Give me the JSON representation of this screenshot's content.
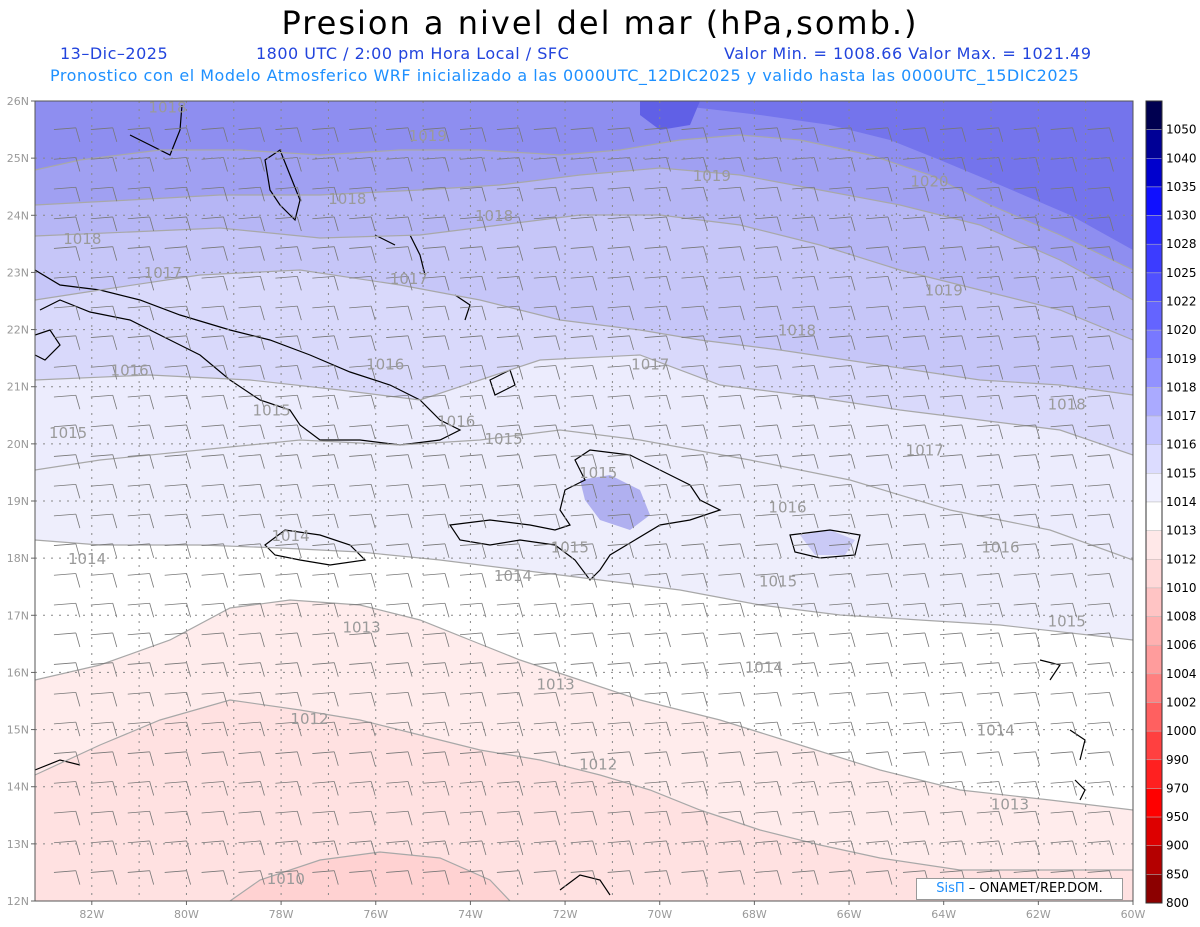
{
  "header": {
    "title": "Presion a nivel del mar (hPa,somb.)",
    "date": "13–Dic–2025",
    "time": "1800 UTC / 2:00 pm Hora Local / SFC",
    "minmax": "Valor Min. = 1008.66  Valor Max. = 1021.49",
    "model_info": "Pronostico con el Modelo Atmosferico WRF inicializado a las 0000UTC_12DIC2025 y valido hasta las  0000UTC_15DIC2025"
  },
  "map": {
    "lon_range": [
      -83.2,
      -60
    ],
    "lat_range": [
      12,
      26
    ],
    "lat_ticks": [
      "26N",
      "25N",
      "24N",
      "23N",
      "22N",
      "21N",
      "20N",
      "19N",
      "18N",
      "17N",
      "16N",
      "15N",
      "14N",
      "13N",
      "12N"
    ],
    "lon_ticks": [
      "82W",
      "80W",
      "78W",
      "76W",
      "74W",
      "72W",
      "70W",
      "68W",
      "66W",
      "64W",
      "62W",
      "60W"
    ],
    "contour_labels": [
      {
        "text": "1018",
        "lon": -80.4,
        "lat": 25.8
      },
      {
        "text": "1019",
        "lon": -74.9,
        "lat": 25.3
      },
      {
        "text": "1019",
        "lon": -68.9,
        "lat": 24.6
      },
      {
        "text": "1020",
        "lon": -64.3,
        "lat": 24.5
      },
      {
        "text": "1018",
        "lon": -76.6,
        "lat": 24.2
      },
      {
        "text": "1018",
        "lon": -73.5,
        "lat": 23.9
      },
      {
        "text": "1018",
        "lon": -82.2,
        "lat": 23.5
      },
      {
        "text": "1017",
        "lon": -80.5,
        "lat": 22.9
      },
      {
        "text": "1017",
        "lon": -75.3,
        "lat": 22.8
      },
      {
        "text": "1019",
        "lon": -64.0,
        "lat": 22.6
      },
      {
        "text": "1018",
        "lon": -67.1,
        "lat": 21.9
      },
      {
        "text": "1017",
        "lon": -70.2,
        "lat": 21.3
      },
      {
        "text": "1016",
        "lon": -81.2,
        "lat": 21.2
      },
      {
        "text": "1016",
        "lon": -75.8,
        "lat": 21.3
      },
      {
        "text": "1015",
        "lon": -78.2,
        "lat": 20.5
      },
      {
        "text": "1016",
        "lon": -74.3,
        "lat": 20.3
      },
      {
        "text": "1018",
        "lon": -61.4,
        "lat": 20.6
      },
      {
        "text": "1015",
        "lon": -82.5,
        "lat": 20.1
      },
      {
        "text": "1015",
        "lon": -73.3,
        "lat": 20.0
      },
      {
        "text": "1017",
        "lon": -64.4,
        "lat": 19.8
      },
      {
        "text": "1015",
        "lon": -71.3,
        "lat": 19.4
      },
      {
        "text": "1016",
        "lon": -67.3,
        "lat": 18.8
      },
      {
        "text": "1014",
        "lon": -77.8,
        "lat": 18.3
      },
      {
        "text": "1015",
        "lon": -71.9,
        "lat": 18.1
      },
      {
        "text": "1016",
        "lon": -62.8,
        "lat": 18.1
      },
      {
        "text": "1014",
        "lon": -82.1,
        "lat": 17.9
      },
      {
        "text": "1014",
        "lon": -73.1,
        "lat": 17.6
      },
      {
        "text": "1015",
        "lon": -67.5,
        "lat": 17.5
      },
      {
        "text": "1015",
        "lon": -61.4,
        "lat": 16.8
      },
      {
        "text": "1013",
        "lon": -76.3,
        "lat": 16.7
      },
      {
        "text": "1014",
        "lon": -67.8,
        "lat": 16.0
      },
      {
        "text": "1013",
        "lon": -72.2,
        "lat": 15.7
      },
      {
        "text": "1012",
        "lon": -77.4,
        "lat": 15.1
      },
      {
        "text": "1014",
        "lon": -62.9,
        "lat": 14.9
      },
      {
        "text": "1012",
        "lon": -71.3,
        "lat": 14.3
      },
      {
        "text": "1013",
        "lon": -62.6,
        "lat": 13.6
      },
      {
        "text": "1010",
        "lon": -77.9,
        "lat": 12.3
      }
    ]
  },
  "legend": {
    "labels": [
      "1050",
      "1040",
      "1035",
      "1030",
      "1028",
      "1025",
      "1022",
      "1020",
      "1019",
      "1018",
      "1017",
      "1016",
      "1015",
      "1014",
      "1013",
      "1012",
      "1010",
      "1008",
      "1006",
      "1004",
      "1002",
      "1000",
      "990",
      "970",
      "950",
      "900",
      "850",
      "800"
    ],
    "colors": [
      "#000050",
      "#000096",
      "#0000cd",
      "#1010ff",
      "#2a2aff",
      "#3c3cff",
      "#5050ff",
      "#6464ff",
      "#7878ff",
      "#9292ff",
      "#aaaaff",
      "#c4c4ff",
      "#dcdcff",
      "#f0f0ff",
      "#ffffff",
      "#ffe8e8",
      "#ffd8d8",
      "#ffc4c4",
      "#ffb0b0",
      "#ff9c9c",
      "#ff8080",
      "#ff6060",
      "#ff4040",
      "#ff2020",
      "#ff0000",
      "#dd0000",
      "#b40000",
      "#8c0000"
    ]
  },
  "credit": {
    "brand": "SisΠ",
    "org": " – ONAMET/REP.DOM."
  }
}
